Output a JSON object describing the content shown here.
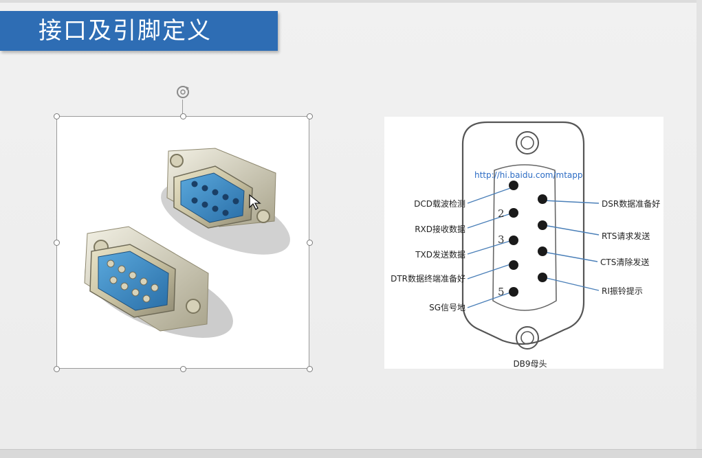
{
  "slide": {
    "title": "接口及引脚定义"
  },
  "pinout": {
    "url": "http://hi.baidu.com/mtapp",
    "caption": "DB9母头",
    "left_labels": [
      "DCD载波检测",
      "RXD接收数据",
      "TXD发送数据",
      "DTR数据终端准备好",
      "SG信号地"
    ],
    "right_labels": [
      "DSR数据准备好",
      "RTS请求发送",
      "CTS清除发送",
      "RI振铃提示"
    ],
    "pin_numbers": [
      "2",
      "3",
      "5"
    ]
  },
  "colors": {
    "title_bar": "#2e6db4",
    "pin_line": "#4a7fb8",
    "url": "#2c6cc4"
  },
  "icons": {
    "rotate": "rotate-icon",
    "cursor": "move-cursor-icon"
  }
}
